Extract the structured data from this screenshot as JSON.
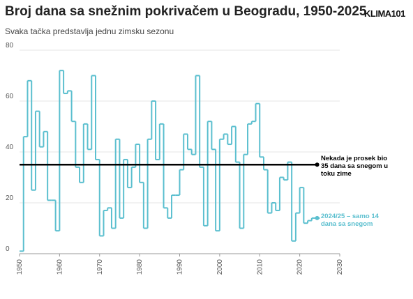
{
  "chart_data": {
    "type": "step",
    "title": "Broj dana sa snežnim pokrivačem u Beogradu, 1950-2025",
    "subtitle": "Svaka tačka predstavlja jednu zimsku sezonu",
    "logo": "KLIMA101",
    "x": [
      1950,
      1951,
      1952,
      1953,
      1954,
      1955,
      1956,
      1957,
      1958,
      1959,
      1960,
      1961,
      1962,
      1963,
      1964,
      1965,
      1966,
      1967,
      1968,
      1969,
      1970,
      1971,
      1972,
      1973,
      1974,
      1975,
      1976,
      1977,
      1978,
      1979,
      1980,
      1981,
      1982,
      1983,
      1984,
      1985,
      1986,
      1987,
      1988,
      1989,
      1990,
      1991,
      1992,
      1993,
      1994,
      1995,
      1996,
      1997,
      1998,
      1999,
      2000,
      2001,
      2002,
      2003,
      2004,
      2005,
      2006,
      2007,
      2008,
      2009,
      2010,
      2011,
      2012,
      2013,
      2014,
      2015,
      2016,
      2017,
      2018,
      2019,
      2020,
      2021,
      2022,
      2023,
      2024
    ],
    "series": [
      {
        "name": "Broj dana sa snežnim pokrivačem",
        "color": "#5bbfcf",
        "values": [
          1,
          46,
          68,
          25,
          56,
          42,
          48,
          21,
          21,
          9,
          72,
          63,
          64,
          52,
          34,
          28,
          51,
          41,
          70,
          37,
          7,
          17,
          18,
          10,
          45,
          14,
          37,
          26,
          34,
          43,
          28,
          10,
          45,
          60,
          37,
          51,
          18,
          14,
          23,
          23,
          33,
          47,
          41,
          39,
          70,
          34,
          11,
          52,
          41,
          9,
          45,
          47,
          43,
          50,
          36,
          10,
          39,
          51,
          52,
          59,
          38,
          33,
          16,
          20,
          17,
          30,
          29,
          36,
          5,
          16,
          26,
          12,
          13,
          14,
          14
        ]
      }
    ],
    "reference": {
      "value": 35,
      "label": "Nekada je prosek bio 35 dana sa snegom u toku zime",
      "color": "#000000"
    },
    "last_note": "2024/25 – samo 14 dana sa snegom",
    "xlim": [
      1950,
      2030
    ],
    "xticks": [
      1950,
      1960,
      1970,
      1980,
      1990,
      2000,
      2010,
      2020,
      2030
    ],
    "ylim": [
      0,
      80
    ],
    "yticks": [
      0,
      20,
      40,
      60,
      80
    ],
    "grid": true
  }
}
